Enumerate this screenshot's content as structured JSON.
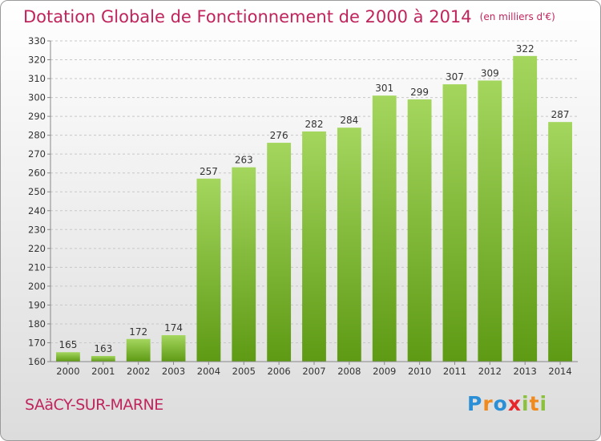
{
  "header": {
    "title": "Dotation Globale de Fonctionnement de 2000 à 2014",
    "unit": "(en milliers d'€)"
  },
  "footer": {
    "commune": "SAäCY-SUR-MARNE",
    "brand": "Proxiti",
    "brand_letters": [
      {
        "ch": "P",
        "color": "#2a8fd6"
      },
      {
        "ch": "r",
        "color": "#f08a1c"
      },
      {
        "ch": "o",
        "color": "#2a8fd6"
      },
      {
        "ch": "x",
        "color": "#e8262a"
      },
      {
        "ch": "i",
        "color": "#8cc13f"
      },
      {
        "ch": "t",
        "color": "#f08a1c"
      },
      {
        "ch": "i",
        "color": "#8cc13f"
      }
    ]
  },
  "chart_data": {
    "type": "bar",
    "categories": [
      "2000",
      "2001",
      "2002",
      "2003",
      "2004",
      "2005",
      "2006",
      "2007",
      "2008",
      "2009",
      "2010",
      "2011",
      "2012",
      "2013",
      "2014"
    ],
    "values": [
      165,
      163,
      172,
      174,
      257,
      263,
      276,
      282,
      284,
      301,
      299,
      307,
      309,
      322,
      287
    ],
    "ylim": [
      160,
      330
    ],
    "yticks": [
      160,
      170,
      180,
      190,
      200,
      210,
      220,
      230,
      240,
      250,
      260,
      270,
      280,
      290,
      300,
      310,
      320,
      330
    ],
    "grid": true,
    "bar_color_top": "#a4d65e",
    "bar_color_bottom": "#5e9a14"
  }
}
